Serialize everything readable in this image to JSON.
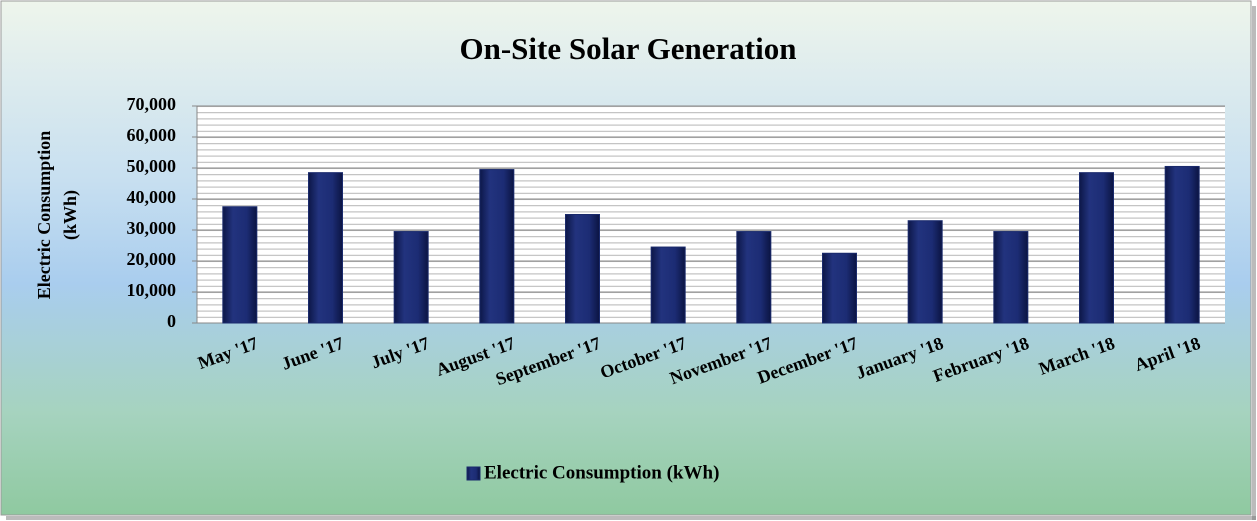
{
  "chart_data": {
    "type": "bar",
    "title": "On-Site Solar Generation",
    "y_label": [
      "Electric Consumption",
      "(kWh)"
    ],
    "categories": [
      "May '17",
      "June '17",
      "July '17",
      "August '17",
      "September '17",
      "October '17",
      "November '17",
      "December '17",
      "January '18",
      "February '18",
      "March '18",
      "April '18"
    ],
    "series": [
      {
        "name": "Electric Consumption (kWh)",
        "color": "#1a2a6c",
        "values": [
          37500,
          48500,
          29500,
          49500,
          35000,
          24500,
          29500,
          22500,
          33000,
          29500,
          48500,
          50500
        ]
      }
    ],
    "ylim": [
      0,
      70000
    ],
    "yticks": [
      0,
      {
        "value": 10000,
        "label": "10,000"
      },
      {
        "value": 20000,
        "label": "20,000"
      },
      {
        "value": 30000,
        "label": "30,000"
      },
      {
        "value": 40000,
        "label": "40,000"
      },
      {
        "value": 50000,
        "label": "50,000"
      },
      {
        "value": 60000,
        "label": "60,000"
      },
      {
        "value": 70000,
        "label": "70,000"
      }
    ],
    "grid": true,
    "legend": "bottom"
  }
}
